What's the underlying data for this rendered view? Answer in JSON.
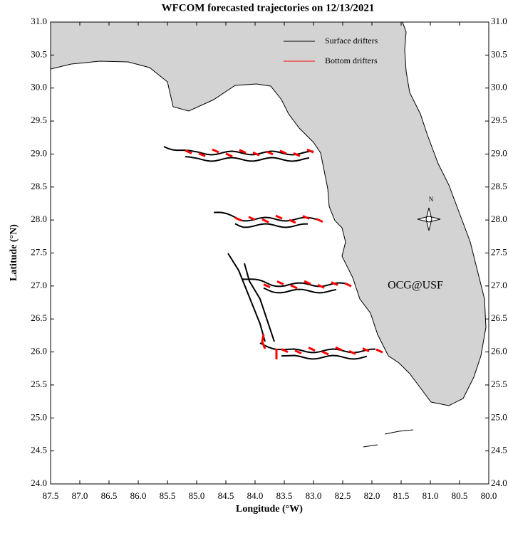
{
  "chart_data": {
    "type": "map",
    "title": "WFCOM forecasted trajectories on 12/13/2021",
    "xlabel": "Longitude (°W)",
    "ylabel": "Latitude (°N)",
    "xlim": [
      87.5,
      80.0
    ],
    "ylim": [
      24.0,
      31.0
    ],
    "xticks": [
      87.5,
      {
        "value": 87,
        "label": "87.0"
      },
      86.5,
      {
        "value": 86,
        "label": "86.0"
      },
      85.5,
      {
        "value": 85,
        "label": "85.0"
      },
      84.5,
      {
        "value": 84,
        "label": "84.0"
      },
      83.5,
      {
        "value": 83,
        "label": "83.0"
      },
      82.5,
      {
        "value": 82,
        "label": "82.0"
      },
      81.5,
      {
        "value": 81,
        "label": "81.0"
      },
      80.5,
      {
        "value": 80,
        "label": "80.0"
      }
    ],
    "yticks": [
      {
        "value": 24,
        "label": "24.0"
      },
      24.5,
      {
        "value": 25,
        "label": "25.0"
      },
      25.5,
      {
        "value": 26,
        "label": "26.0"
      },
      26.5,
      {
        "value": 27,
        "label": "27.0"
      },
      27.5,
      {
        "value": 28,
        "label": "28.0"
      },
      28.5,
      {
        "value": 29,
        "label": "29.0"
      },
      29.5,
      {
        "value": 30,
        "label": "30.0"
      },
      30.5,
      {
        "value": 31,
        "label": "31.0"
      }
    ],
    "series": [
      {
        "name": "Surface drifters",
        "color": "#000000"
      },
      {
        "name": "Bottom drifters",
        "color": "#ff0000"
      }
    ],
    "annotation": "OCG@USF",
    "annotation_color": "#ff0000",
    "compass_label": "N",
    "land_color": "#d3d3d3"
  }
}
